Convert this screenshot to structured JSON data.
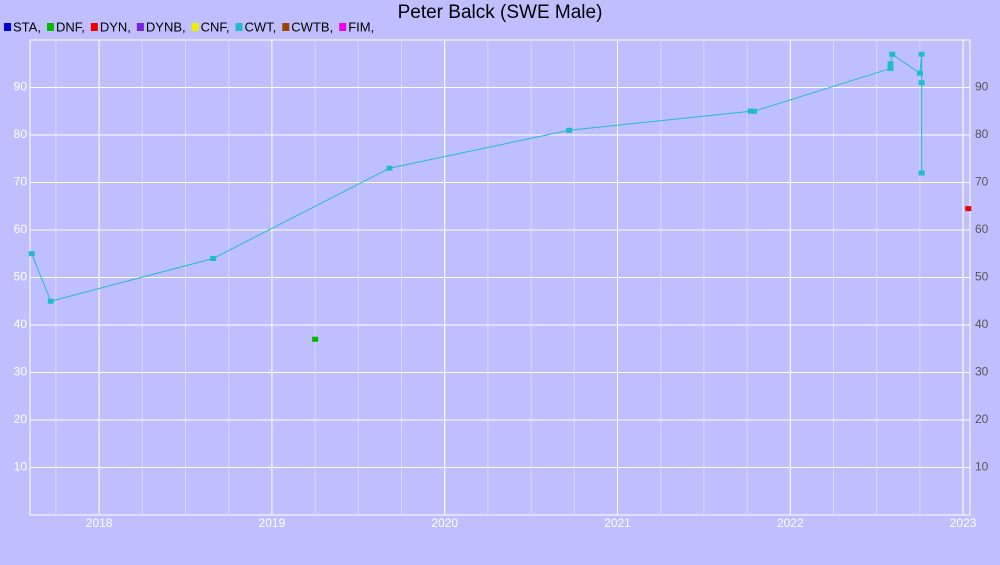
{
  "chart_data": {
    "type": "line",
    "title": "Peter Balck (SWE Male)",
    "series": [
      {
        "name": "STA,",
        "color": "#0000dd",
        "x": [],
        "values": []
      },
      {
        "name": "DNF,",
        "color": "#00bb00",
        "x": [
          2019.25
        ],
        "values": [
          37
        ]
      },
      {
        "name": "DYN,",
        "color": "#ee0000",
        "x": [
          2023.03
        ],
        "values": [
          64.5
        ]
      },
      {
        "name": "DYNB,",
        "color": "#7722dd",
        "x": [],
        "values": []
      },
      {
        "name": "CNF,",
        "color": "#eeee00",
        "x": [],
        "values": []
      },
      {
        "name": "CWT,",
        "color": "#22bbcc",
        "x": [
          2017.61,
          2017.72,
          2018.66,
          2019.68,
          2020.72,
          2021.77,
          2021.79,
          2022.58,
          2022.58,
          2022.59,
          2022.75,
          2022.76,
          2022.76,
          2022.76
        ],
        "values": [
          55,
          45,
          54,
          73,
          81,
          85,
          85,
          94,
          95,
          97,
          93,
          97,
          72,
          91
        ]
      },
      {
        "name": "CWTB,",
        "color": "#994400",
        "x": [],
        "values": []
      },
      {
        "name": "FIM,",
        "color": "#ee00ee",
        "x": [],
        "values": []
      }
    ],
    "xlim": [
      2017.6,
      2023.04
    ],
    "xticks": [
      2018,
      2019,
      2020,
      2021,
      2022,
      2023
    ],
    "ylim": [
      0,
      100
    ],
    "yticks": [
      10,
      20,
      30,
      40,
      50,
      60,
      70,
      80,
      90
    ],
    "grid": true
  }
}
